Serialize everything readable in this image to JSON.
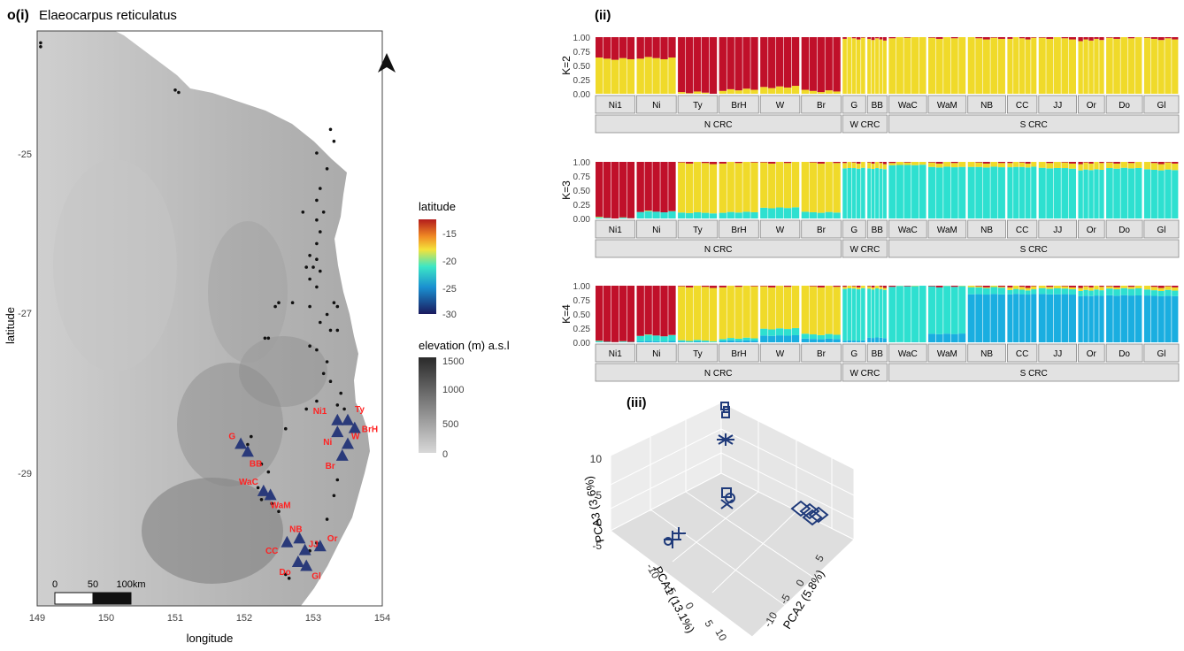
{
  "panel_i": {
    "label": "o(i)",
    "species": "Elaeocarpus reticulatus",
    "xlabel": "longitude",
    "ylabel": "latitude",
    "x_ticks": [
      "149",
      "150",
      "151",
      "152",
      "153",
      "154"
    ],
    "y_ticks": [
      "-25",
      "-27",
      "-29"
    ],
    "legend_latitude_title": "latitude",
    "legend_latitude_ticks": [
      "-15",
      "-20",
      "-25",
      "-30"
    ],
    "legend_elevation_title": "elevation (m) a.s.l",
    "legend_elevation_ticks": [
      "1500",
      "1000",
      "500",
      "0"
    ],
    "scalebar_labels": [
      "0",
      "50",
      "100km"
    ],
    "sites": [
      "Ni1",
      "Ty",
      "Ni",
      "BrH",
      "W",
      "Br",
      "G",
      "BB",
      "WaC",
      "WaM",
      "NB",
      "Or",
      "JJ",
      "CC",
      "Do",
      "Gl"
    ],
    "colors": {
      "site_label": "#ff2222",
      "triangle": "#2a3a7a"
    }
  },
  "panel_ii": {
    "label": "(ii)",
    "k_labels": [
      "K=2",
      "K=3",
      "K=4"
    ],
    "y_ticks": [
      "1.00",
      "0.75",
      "0.50",
      "0.25",
      "0.00"
    ],
    "populations": [
      "Ni1",
      "Ni",
      "Ty",
      "BrH",
      "W",
      "Br",
      "G",
      "BB",
      "WaC",
      "WaM",
      "NB",
      "CC",
      "JJ",
      "Or",
      "Do",
      "Gl"
    ],
    "regions": [
      "N CRC",
      "W CRC",
      "S CRC"
    ],
    "colors": {
      "red": "#c0102a",
      "yellow": "#f0da2a",
      "teal": "#2ee0d0",
      "blue": "#1aaee0"
    }
  },
  "panel_iii": {
    "label": "(iii)",
    "pca1_label": "PCA1 (13.1%)",
    "pca2_label": "PCA2 (5.8%)",
    "pca3_label": "PCA3 (3.6%)",
    "pca3_ticks": [
      "10",
      "5",
      "0",
      "-5"
    ],
    "pca1_ticks": [
      "-10",
      "-5",
      "0",
      "5",
      "10"
    ],
    "pca2_ticks": [
      "5",
      "0",
      "-5",
      "-10"
    ]
  },
  "chart_data": [
    {
      "type": "scatter",
      "title": "Elaeocarpus reticulatus",
      "xlabel": "longitude",
      "ylabel": "latitude",
      "xlim": [
        149,
        154
      ],
      "ylim": [
        -30.9,
        -23.6
      ],
      "site_points": [
        {
          "label": "Ni1",
          "x": 153.35,
          "y": -28.55
        },
        {
          "label": "Ty",
          "x": 153.5,
          "y": -28.55
        },
        {
          "label": "Ni",
          "x": 153.35,
          "y": -28.7
        },
        {
          "label": "BrH",
          "x": 153.6,
          "y": -28.65
        },
        {
          "label": "W",
          "x": 153.5,
          "y": -28.85
        },
        {
          "label": "Br",
          "x": 153.42,
          "y": -29.0
        },
        {
          "label": "G",
          "x": 151.95,
          "y": -28.85
        },
        {
          "label": "BB",
          "x": 152.05,
          "y": -28.95
        },
        {
          "label": "WaC",
          "x": 152.28,
          "y": -29.45
        },
        {
          "label": "WaM",
          "x": 152.38,
          "y": -29.5
        },
        {
          "label": "NB",
          "x": 152.8,
          "y": -30.05
        },
        {
          "label": "Or",
          "x": 153.1,
          "y": -30.15
        },
        {
          "label": "JJ",
          "x": 152.88,
          "y": -30.2
        },
        {
          "label": "CC",
          "x": 152.62,
          "y": -30.1
        },
        {
          "label": "Do",
          "x": 152.78,
          "y": -30.35
        },
        {
          "label": "Gl",
          "x": 152.9,
          "y": -30.4
        }
      ],
      "occurrences": [
        [
          149.05,
          -23.75
        ],
        [
          149.05,
          -23.8
        ],
        [
          151.0,
          -24.35
        ],
        [
          151.05,
          -24.38
        ],
        [
          153.25,
          -24.85
        ],
        [
          153.3,
          -25.0
        ],
        [
          153.05,
          -25.15
        ],
        [
          153.2,
          -25.35
        ],
        [
          153.1,
          -25.6
        ],
        [
          153.05,
          -25.75
        ],
        [
          152.85,
          -25.9
        ],
        [
          153.15,
          -25.9
        ],
        [
          153.05,
          -26.0
        ],
        [
          153.1,
          -26.15
        ],
        [
          153.05,
          -26.3
        ],
        [
          152.95,
          -26.45
        ],
        [
          153.05,
          -26.5
        ],
        [
          152.9,
          -26.6
        ],
        [
          153.0,
          -26.6
        ],
        [
          153.1,
          -26.65
        ],
        [
          152.95,
          -26.75
        ],
        [
          153.05,
          -26.85
        ],
        [
          152.7,
          -27.05
        ],
        [
          152.5,
          -27.05
        ],
        [
          152.45,
          -27.1
        ],
        [
          152.95,
          -27.1
        ],
        [
          153.3,
          -27.05
        ],
        [
          153.35,
          -27.1
        ],
        [
          153.2,
          -27.2
        ],
        [
          153.1,
          -27.3
        ],
        [
          153.25,
          -27.4
        ],
        [
          153.35,
          -27.4
        ],
        [
          152.3,
          -27.5
        ],
        [
          152.35,
          -27.5
        ],
        [
          152.95,
          -27.6
        ],
        [
          153.05,
          -27.65
        ],
        [
          153.2,
          -27.8
        ],
        [
          153.15,
          -27.95
        ],
        [
          153.25,
          -28.05
        ],
        [
          153.4,
          -28.2
        ],
        [
          153.05,
          -28.3
        ],
        [
          152.9,
          -28.4
        ],
        [
          153.35,
          -28.35
        ],
        [
          153.45,
          -28.4
        ],
        [
          152.6,
          -28.65
        ],
        [
          152.1,
          -28.75
        ],
        [
          152.05,
          -28.85
        ],
        [
          152.25,
          -29.1
        ],
        [
          152.35,
          -29.2
        ],
        [
          152.2,
          -29.4
        ],
        [
          152.25,
          -29.55
        ],
        [
          152.4,
          -29.6
        ],
        [
          152.5,
          -29.7
        ],
        [
          153.35,
          -29.3
        ],
        [
          153.3,
          -29.5
        ],
        [
          153.2,
          -29.8
        ],
        [
          153.05,
          -30.1
        ],
        [
          152.95,
          -30.2
        ],
        [
          152.6,
          -30.5
        ],
        [
          152.65,
          -30.55
        ]
      ]
    },
    {
      "type": "bar",
      "title": "K=2",
      "ylim": [
        0,
        1
      ],
      "categories": [
        "Ni1",
        "Ni",
        "Ty",
        "BrH",
        "W",
        "Br",
        "G",
        "BB",
        "WaC",
        "WaM",
        "NB",
        "CC",
        "JJ",
        "Or",
        "Do",
        "Gl"
      ],
      "series": [
        {
          "values": [
            0.38,
            0.37,
            0.98,
            0.93,
            0.88,
            0.95,
            0.02,
            0.04,
            0.0,
            0.01,
            0.02,
            0.02,
            0.02,
            0.05,
            0.01,
            0.03
          ]
        },
        {
          "values": [
            0.62,
            0.63,
            0.02,
            0.07,
            0.12,
            0.05,
            0.98,
            0.96,
            1.0,
            0.99,
            0.98,
            0.98,
            0.98,
            0.95,
            0.99,
            0.97
          ]
        }
      ]
    },
    {
      "type": "bar",
      "title": "K=3",
      "ylim": [
        0,
        1
      ],
      "categories": [
        "Ni1",
        "Ni",
        "Ty",
        "BrH",
        "W",
        "Br",
        "G",
        "BB",
        "WaC",
        "WaM",
        "NB",
        "CC",
        "JJ",
        "Or",
        "Do",
        "Gl"
      ],
      "series": [
        {
          "values": [
            0.99,
            0.88,
            0.02,
            0.01,
            0.01,
            0.01,
            0.01,
            0.02,
            0.0,
            0.01,
            0.01,
            0.01,
            0.01,
            0.02,
            0.01,
            0.02
          ]
        },
        {
          "values": [
            0.0,
            0.0,
            0.88,
            0.88,
            0.8,
            0.88,
            0.1,
            0.1,
            0.05,
            0.08,
            0.08,
            0.08,
            0.1,
            0.12,
            0.1,
            0.12
          ]
        },
        {
          "values": [
            0.01,
            0.12,
            0.1,
            0.11,
            0.19,
            0.11,
            0.89,
            0.88,
            0.95,
            0.91,
            0.91,
            0.91,
            0.89,
            0.86,
            0.89,
            0.86
          ]
        }
      ]
    },
    {
      "type": "bar",
      "title": "K=4",
      "ylim": [
        0,
        1
      ],
      "categories": [
        "Ni1",
        "Ni",
        "Ty",
        "BrH",
        "W",
        "Br",
        "G",
        "BB",
        "WaC",
        "WaM",
        "NB",
        "CC",
        "JJ",
        "Or",
        "Do",
        "Gl"
      ],
      "series": [
        {
          "values": [
            0.99,
            0.88,
            0.02,
            0.01,
            0.01,
            0.01,
            0.01,
            0.02,
            0.0,
            0.01,
            0.01,
            0.02,
            0.01,
            0.02,
            0.01,
            0.02
          ]
        },
        {
          "values": [
            0.0,
            0.0,
            0.95,
            0.92,
            0.75,
            0.85,
            0.04,
            0.04,
            0.0,
            0.0,
            0.02,
            0.05,
            0.04,
            0.06,
            0.04,
            0.06
          ]
        },
        {
          "values": [
            0.01,
            0.1,
            0.02,
            0.04,
            0.12,
            0.08,
            0.92,
            0.86,
            1.0,
            0.84,
            0.12,
            0.08,
            0.1,
            0.1,
            0.12,
            0.1
          ]
        },
        {
          "values": [
            0.0,
            0.02,
            0.01,
            0.03,
            0.12,
            0.06,
            0.03,
            0.08,
            0.0,
            0.15,
            0.85,
            0.85,
            0.85,
            0.82,
            0.83,
            0.82
          ]
        }
      ]
    }
  ]
}
